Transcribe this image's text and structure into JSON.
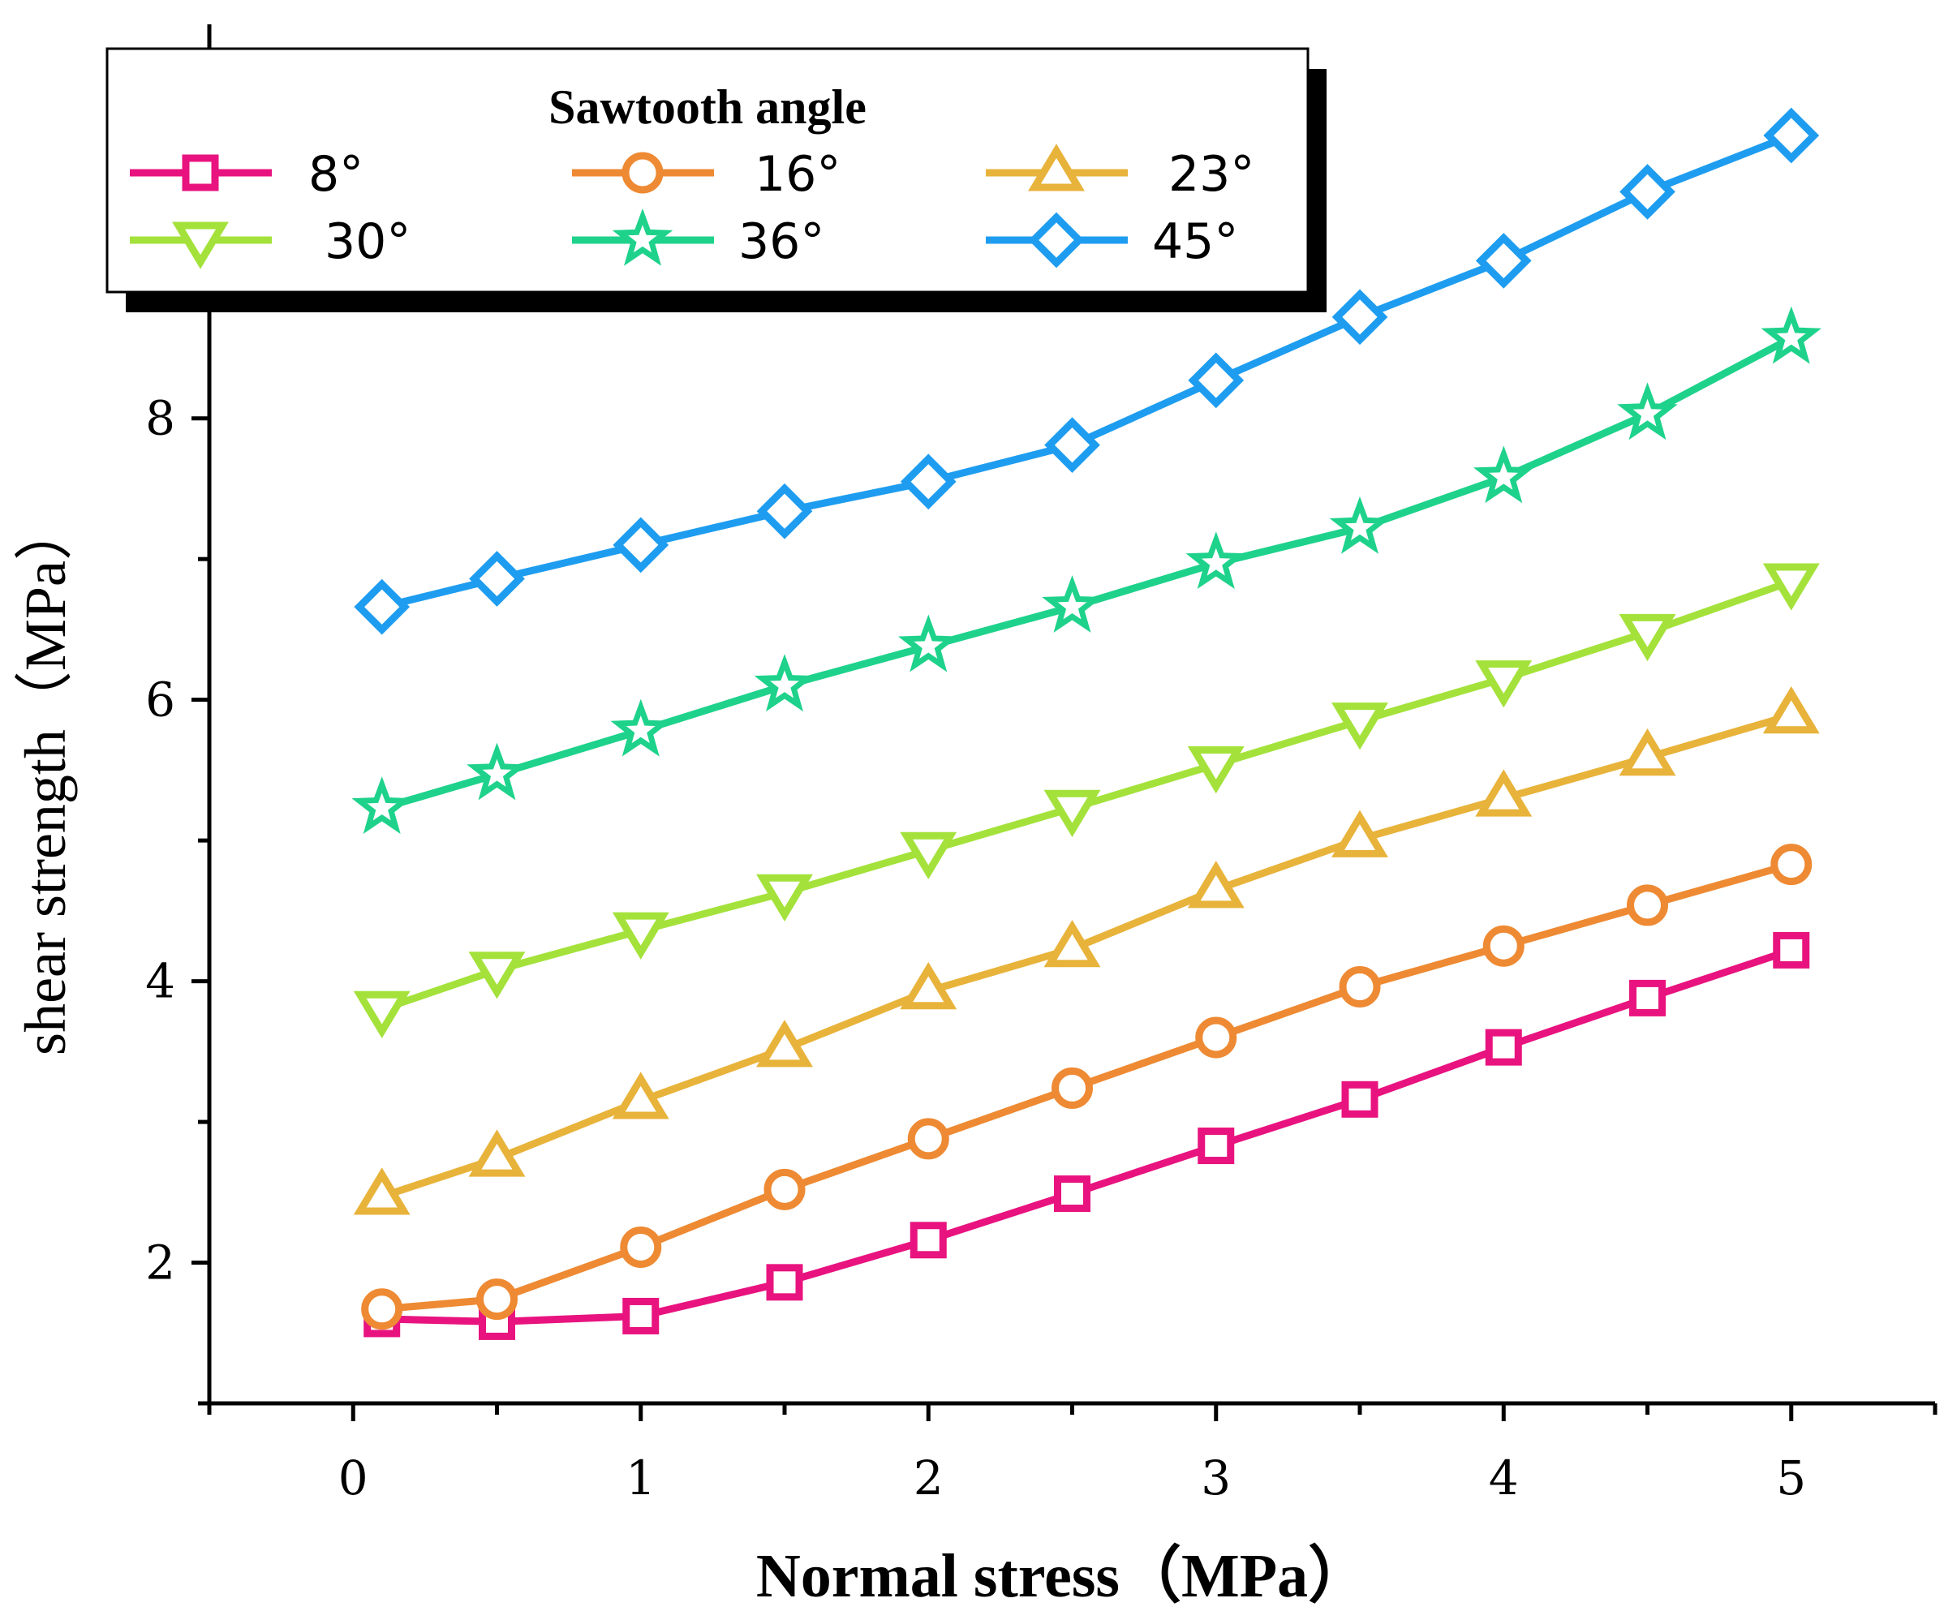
{
  "chart_data": {
    "type": "line",
    "xlabel": "Normal stress（MPa）",
    "ylabel": "shear strength（MPa）",
    "xlim": [
      -0.5,
      5.5
    ],
    "ylim": [
      1.0,
      10.8
    ],
    "x_ticks": [
      "0",
      "1",
      "2",
      "3",
      "4",
      "5"
    ],
    "y_ticks": [
      "2",
      "4",
      "6",
      "8"
    ],
    "legend_title": "Sawtooth angle",
    "legend_position": "top-left",
    "x": [
      0.1,
      0.5,
      1.0,
      1.5,
      2.0,
      2.5,
      3.0,
      3.5,
      4.0,
      4.5,
      5.0
    ],
    "series": [
      {
        "name": "8°",
        "color": "#e8137f",
        "marker": "square",
        "values": [
          1.6,
          1.58,
          1.62,
          1.86,
          2.16,
          2.49,
          2.83,
          3.16,
          3.53,
          3.88,
          4.22
        ]
      },
      {
        "name": "16°",
        "color": "#ee8a33",
        "marker": "circle",
        "values": [
          1.67,
          1.74,
          2.11,
          2.52,
          2.88,
          3.24,
          3.6,
          3.96,
          4.25,
          4.54,
          4.83
        ]
      },
      {
        "name": "23°",
        "color": "#e8b33a",
        "marker": "triangle-up",
        "values": [
          2.47,
          2.74,
          3.15,
          3.52,
          3.93,
          4.23,
          4.65,
          5.01,
          5.3,
          5.59,
          5.89
        ]
      },
      {
        "name": "30°",
        "color": "#a4e23b",
        "marker": "triangle-down",
        "values": [
          3.8,
          4.08,
          4.36,
          4.63,
          4.93,
          5.23,
          5.54,
          5.85,
          6.15,
          6.48,
          6.84
        ]
      },
      {
        "name": "36°",
        "color": "#1ed28b",
        "marker": "star",
        "values": [
          5.23,
          5.47,
          5.78,
          6.1,
          6.38,
          6.66,
          6.97,
          7.22,
          7.58,
          8.03,
          8.57
        ]
      },
      {
        "name": "45°",
        "color": "#1e9df0",
        "marker": "diamond",
        "values": [
          6.66,
          6.86,
          7.1,
          7.34,
          7.55,
          7.81,
          8.27,
          8.72,
          9.12,
          9.61,
          10.01
        ]
      }
    ]
  }
}
